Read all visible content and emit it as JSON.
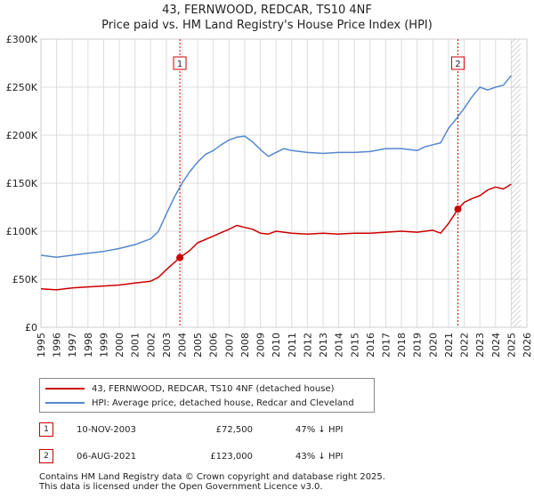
{
  "chart_data": {
    "type": "line",
    "title": "43, FERNWOOD, REDCAR, TS10 4NF",
    "subtitle": "Price paid vs. HM Land Registry's House Price Index (HPI)",
    "xlim": [
      1995,
      2026
    ],
    "ylim": [
      0,
      300000
    ],
    "x_ticks": [
      "1995",
      "1996",
      "1997",
      "1998",
      "1999",
      "2000",
      "2001",
      "2002",
      "2003",
      "2004",
      "2005",
      "2006",
      "2007",
      "2008",
      "2009",
      "2010",
      "2011",
      "2012",
      "2013",
      "2014",
      "2015",
      "2016",
      "2017",
      "2018",
      "2019",
      "2020",
      "2021",
      "2022",
      "2023",
      "2024",
      "2025",
      "2026"
    ],
    "y_ticks": [
      {
        "value": 0,
        "label": "£0"
      },
      {
        "value": 50000,
        "label": "£50K"
      },
      {
        "value": 100000,
        "label": "£100K"
      },
      {
        "value": 150000,
        "label": "£150K"
      },
      {
        "value": 200000,
        "label": "£200K"
      },
      {
        "value": 250000,
        "label": "£250K"
      },
      {
        "value": 300000,
        "label": "£300K"
      }
    ],
    "grid": true,
    "series": [
      {
        "name": "43, FERNWOOD, REDCAR, TS10 4NF (detached house)",
        "color": "#cc0000",
        "x": [
          1995.0,
          1996.0,
          1997.0,
          1998.0,
          1999.0,
          2000.0,
          2001.0,
          2002.0,
          2002.5,
          2003.0,
          2003.86,
          2004.5,
          2005.0,
          2006.0,
          2007.0,
          2007.5,
          2008.0,
          2008.5,
          2009.0,
          2009.5,
          2010.0,
          2011.0,
          2012.0,
          2013.0,
          2014.0,
          2015.0,
          2016.0,
          2017.0,
          2018.0,
          2019.0,
          2020.0,
          2020.5,
          2021.0,
          2021.6,
          2022.0,
          2022.5,
          2023.0,
          2023.5,
          2024.0,
          2024.5,
          2025.0
        ],
        "y": [
          40000,
          39000,
          41000,
          42000,
          43000,
          44000,
          46000,
          48000,
          52000,
          60000,
          72500,
          80000,
          88000,
          95000,
          102000,
          106000,
          104000,
          102000,
          98000,
          97000,
          100000,
          98000,
          97000,
          98000,
          97000,
          98000,
          98000,
          99000,
          100000,
          99000,
          101000,
          98000,
          108000,
          123000,
          130000,
          134000,
          137000,
          143000,
          146000,
          144000,
          149000
        ]
      },
      {
        "name": "HPI: Average price, detached house, Redcar and Cleveland",
        "color": "#5588cc",
        "x": [
          1995.0,
          1996.0,
          1997.0,
          1998.0,
          1999.0,
          2000.0,
          2001.0,
          2002.0,
          2002.5,
          2003.0,
          2003.5,
          2004.0,
          2004.5,
          2005.0,
          2005.5,
          2006.0,
          2006.5,
          2007.0,
          2007.5,
          2008.0,
          2008.5,
          2009.0,
          2009.5,
          2010.0,
          2010.5,
          2011.0,
          2012.0,
          2013.0,
          2014.0,
          2015.0,
          2016.0,
          2017.0,
          2018.0,
          2019.0,
          2019.5,
          2020.0,
          2020.5,
          2021.0,
          2021.5,
          2022.0,
          2022.5,
          2023.0,
          2023.5,
          2024.0,
          2024.5,
          2025.0
        ],
        "y": [
          75000,
          73000,
          75000,
          77000,
          79000,
          82000,
          86000,
          92000,
          100000,
          118000,
          135000,
          150000,
          162000,
          172000,
          180000,
          184000,
          190000,
          195000,
          198000,
          199000,
          193000,
          185000,
          178000,
          182000,
          186000,
          184000,
          182000,
          181000,
          182000,
          182000,
          183000,
          186000,
          186000,
          184000,
          188000,
          190000,
          192000,
          207000,
          217000,
          228000,
          240000,
          250000,
          247000,
          250000,
          252000,
          262000
        ]
      }
    ],
    "vertical_markers": [
      {
        "label": "1",
        "x": 2003.86
      },
      {
        "label": "2",
        "x": 2021.6
      }
    ],
    "sale_points": [
      {
        "x": 2003.86,
        "y": 72500
      },
      {
        "x": 2021.6,
        "y": 123000
      }
    ]
  },
  "legend": {
    "property": "43, FERNWOOD, REDCAR, TS10 4NF (detached house)",
    "hpi": "HPI: Average price, detached house, Redcar and Cleveland"
  },
  "transactions": [
    {
      "num": "1",
      "date": "10-NOV-2003",
      "price": "£72,500",
      "hpi": "47% ↓ HPI"
    },
    {
      "num": "2",
      "date": "06-AUG-2021",
      "price": "£123,000",
      "hpi": "43% ↓ HPI"
    }
  ],
  "footer": {
    "line1": "Contains HM Land Registry data © Crown copyright and database right 2025.",
    "line2": "This data is licensed under the Open Government Licence v3.0."
  }
}
